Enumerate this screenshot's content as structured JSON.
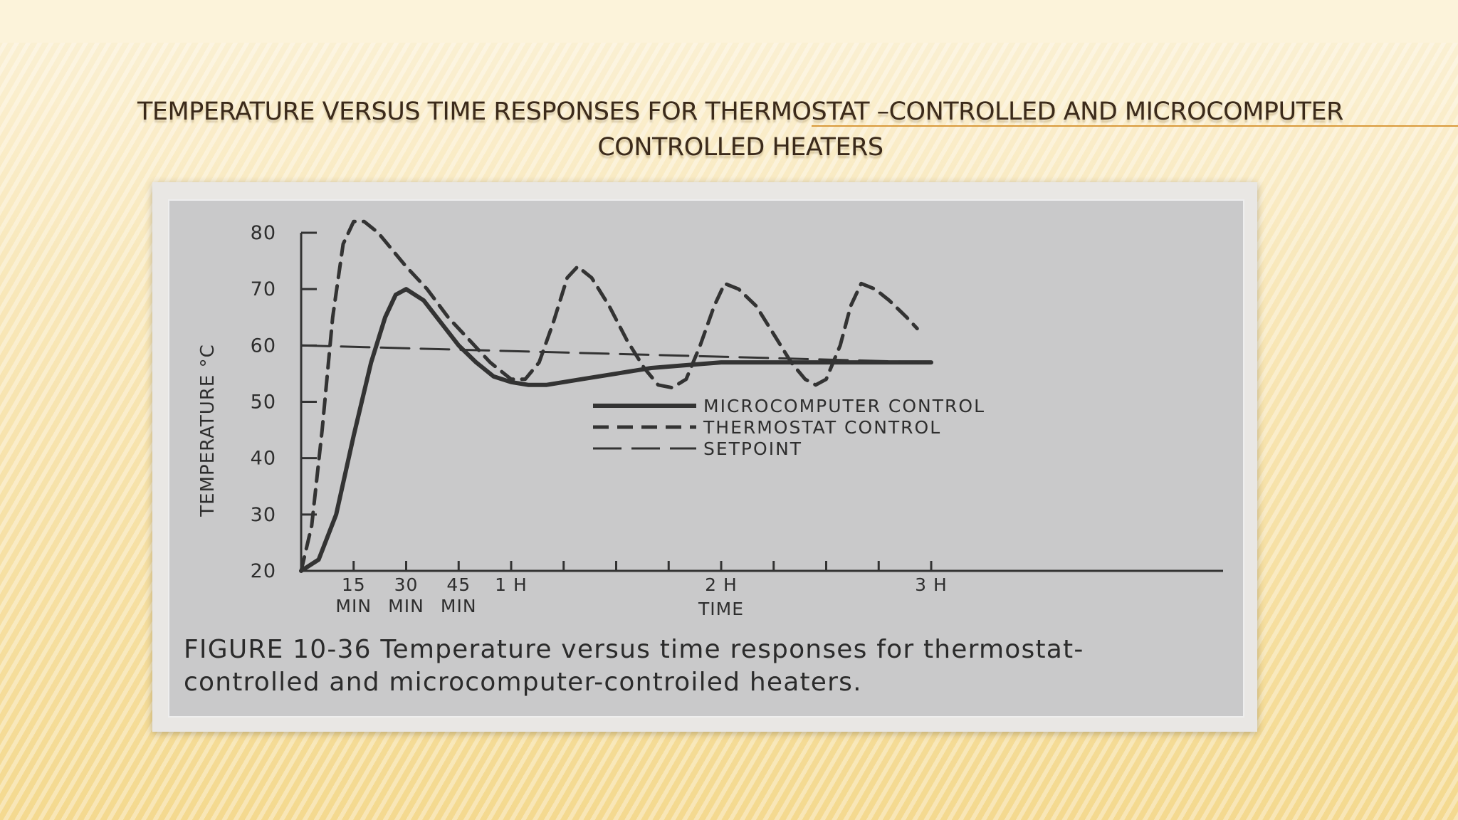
{
  "slide": {
    "title": "TEMPERATURE VERSUS TIME RESPONSES FOR THERMOSTAT –CONTROLLED AND MICROCOMPUTER CONTROLLED HEATERS"
  },
  "figure": {
    "caption": "FIGURE 10-36 Temperature versus time responses for thermostat-controlled and microcomputer-controiled heaters."
  },
  "colors": {
    "line": "#333333",
    "figure_bg": "#c9c9ca"
  },
  "chart_data": {
    "type": "line",
    "ylabel": "TEMPERATURE °C",
    "xlabel": "TIME",
    "ylim": [
      20,
      80
    ],
    "xlim": [
      0,
      180
    ],
    "y_ticks": [
      20,
      30,
      40,
      50,
      60,
      70,
      80
    ],
    "x_ticks": [
      15,
      30,
      45,
      60,
      75,
      90,
      105,
      120,
      135,
      150,
      165,
      180
    ],
    "x_tick_labels": [
      {
        "x": 15,
        "lines": [
          "15",
          "MIN"
        ]
      },
      {
        "x": 30,
        "lines": [
          "30",
          "MIN"
        ]
      },
      {
        "x": 45,
        "lines": [
          "45",
          "MIN"
        ]
      },
      {
        "x": 60,
        "lines": [
          "1 H"
        ]
      },
      {
        "x": 120,
        "lines": [
          "2 H"
        ]
      },
      {
        "x": 180,
        "lines": [
          "3 H"
        ]
      }
    ],
    "legend": [
      "MICROCOMPUTER CONTROL",
      "THERMOSTAT CONTROL",
      "SETPOINT"
    ],
    "legend_position": "center",
    "series": [
      {
        "name": "MICROCOMPUTER CONTROL",
        "style": "solid",
        "points": [
          [
            0,
            20
          ],
          [
            5,
            22
          ],
          [
            10,
            30
          ],
          [
            15,
            44
          ],
          [
            20,
            57
          ],
          [
            24,
            65
          ],
          [
            27,
            69
          ],
          [
            30,
            70
          ],
          [
            35,
            68
          ],
          [
            40,
            64
          ],
          [
            45,
            60
          ],
          [
            50,
            57
          ],
          [
            55,
            54.5
          ],
          [
            60,
            53.5
          ],
          [
            65,
            53
          ],
          [
            70,
            53
          ],
          [
            80,
            54
          ],
          [
            90,
            55
          ],
          [
            100,
            56
          ],
          [
            110,
            56.5
          ],
          [
            120,
            57
          ],
          [
            150,
            57
          ],
          [
            180,
            57
          ]
        ]
      },
      {
        "name": "THERMOSTAT CONTROL",
        "style": "dashed",
        "points": [
          [
            0,
            20
          ],
          [
            3,
            28
          ],
          [
            6,
            45
          ],
          [
            9,
            65
          ],
          [
            12,
            78
          ],
          [
            15,
            82
          ],
          [
            18,
            82
          ],
          [
            22,
            80
          ],
          [
            26,
            77
          ],
          [
            30,
            74
          ],
          [
            36,
            70
          ],
          [
            42,
            65
          ],
          [
            48,
            61
          ],
          [
            54,
            57
          ],
          [
            60,
            54
          ],
          [
            64,
            54
          ],
          [
            68,
            57
          ],
          [
            72,
            64
          ],
          [
            76,
            72
          ],
          [
            79,
            74
          ],
          [
            83,
            72
          ],
          [
            88,
            67
          ],
          [
            93,
            61
          ],
          [
            98,
            56
          ],
          [
            102,
            53
          ],
          [
            106,
            52.5
          ],
          [
            110,
            54
          ],
          [
            114,
            60
          ],
          [
            118,
            67
          ],
          [
            121,
            71
          ],
          [
            125,
            70
          ],
          [
            130,
            67
          ],
          [
            135,
            62
          ],
          [
            140,
            57
          ],
          [
            144,
            54
          ],
          [
            147,
            53
          ],
          [
            150,
            54
          ],
          [
            154,
            60
          ],
          [
            157,
            67
          ],
          [
            160,
            71
          ],
          [
            164,
            70
          ],
          [
            168,
            68
          ],
          [
            173,
            65
          ],
          [
            176,
            63
          ]
        ]
      },
      {
        "name": "SETPOINT",
        "style": "longdash",
        "points": [
          [
            0,
            60
          ],
          [
            180,
            57
          ]
        ]
      }
    ]
  }
}
